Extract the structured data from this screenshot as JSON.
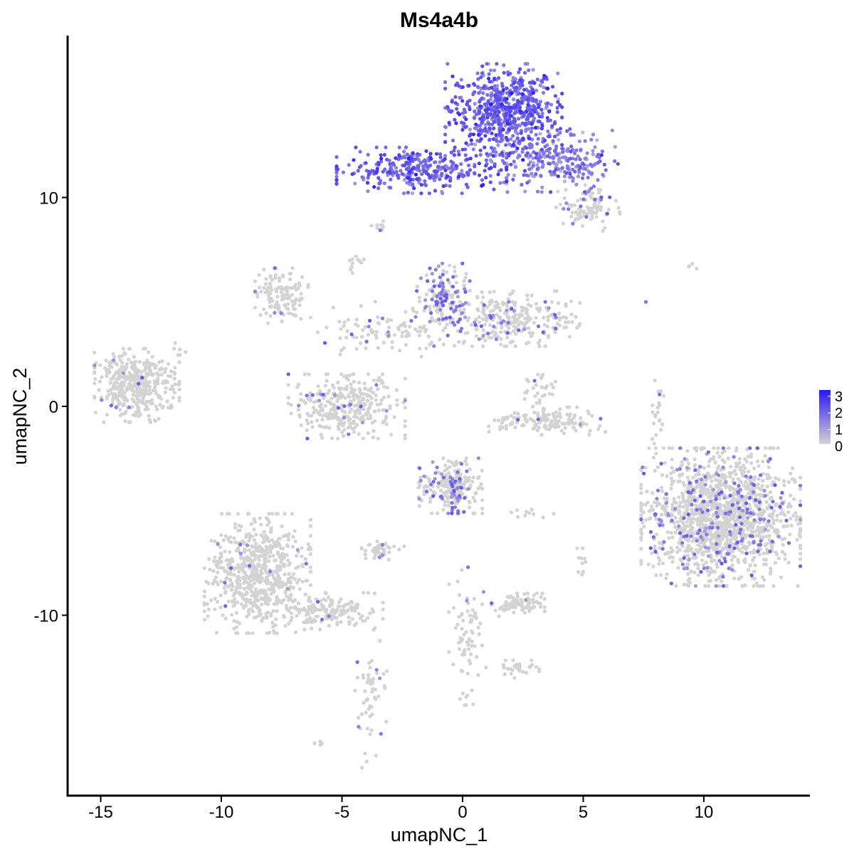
{
  "chart_data": {
    "type": "scatter",
    "title": "Ms4a4b",
    "xlabel": "umapNC_1",
    "ylabel": "umapNC_2",
    "xlim": [
      -16.4,
      14.4
    ],
    "ylim": [
      -18.2,
      17.8
    ],
    "x_ticks": [
      -15,
      -10,
      -5,
      0,
      5,
      10
    ],
    "x_tick_labels": [
      "-15",
      "-10",
      "-5",
      "0",
      "5",
      "10"
    ],
    "y_ticks": [
      -10,
      0,
      10
    ],
    "y_tick_labels": [
      "-10",
      "0",
      "10"
    ],
    "grid": false,
    "legend": {
      "placement": "right",
      "type": "colorbar",
      "ticks": [
        0,
        1,
        2,
        3
      ],
      "tick_labels": [
        "0",
        "1",
        "2",
        "3"
      ],
      "low_color": "#d3d3d3",
      "high_color": "#2a17f5"
    },
    "point_color_low": "#d3d3d3",
    "point_color_high": "#2a17f5",
    "clusters": [
      {
        "cx": 1.7,
        "cy": 14.2,
        "sx": 1.1,
        "sy": 1.0,
        "n": 650,
        "expr": 1.7
      },
      {
        "cx": -1.7,
        "cy": 11.3,
        "sx": 1.6,
        "sy": 0.5,
        "n": 330,
        "expr": 1.75
      },
      {
        "cx": 3.8,
        "cy": 11.8,
        "sx": 1.2,
        "sy": 0.7,
        "n": 260,
        "expr": 1.3
      },
      {
        "cx": 5.2,
        "cy": 9.5,
        "sx": 0.6,
        "sy": 0.5,
        "n": 110,
        "expr": 0.15
      },
      {
        "cx": -0.8,
        "cy": 5.3,
        "sx": 0.5,
        "sy": 0.7,
        "n": 130,
        "expr": 0.5
      },
      {
        "cx": 2.0,
        "cy": 4.2,
        "sx": 1.3,
        "sy": 0.6,
        "n": 290,
        "expr": 0.12
      },
      {
        "cx": -7.5,
        "cy": 5.3,
        "sx": 0.5,
        "sy": 0.6,
        "n": 130,
        "expr": 0.02
      },
      {
        "cx": -3.0,
        "cy": 3.7,
        "sx": 1.5,
        "sy": 0.6,
        "n": 120,
        "expr": 0.08
      },
      {
        "cx": -4.8,
        "cy": 0.0,
        "sx": 1.1,
        "sy": 0.7,
        "n": 330,
        "expr": 0.04
      },
      {
        "cx": -13.5,
        "cy": 1.0,
        "sx": 0.8,
        "sy": 0.8,
        "n": 400,
        "expr": 0.02
      },
      {
        "cx": 3.5,
        "cy": -0.7,
        "sx": 1.1,
        "sy": 0.3,
        "n": 150,
        "expr": 0.02
      },
      {
        "cx": 3.2,
        "cy": 0.8,
        "sx": 0.3,
        "sy": 0.4,
        "n": 30,
        "expr": 0.02
      },
      {
        "cx": 10.7,
        "cy": -5.3,
        "sx": 1.5,
        "sy": 1.5,
        "n": 1500,
        "expr": 0.12
      },
      {
        "cx": -0.5,
        "cy": -3.8,
        "sx": 0.6,
        "sy": 0.6,
        "n": 230,
        "expr": 0.22
      },
      {
        "cx": -8.5,
        "cy": -8.0,
        "sx": 1.0,
        "sy": 1.3,
        "n": 650,
        "expr": 0.02
      },
      {
        "cx": -5.5,
        "cy": -9.8,
        "sx": 1.0,
        "sy": 0.4,
        "n": 160,
        "expr": 0.03
      },
      {
        "cx": 2.3,
        "cy": -9.5,
        "sx": 0.5,
        "sy": 0.25,
        "n": 80,
        "expr": 0.03
      },
      {
        "cx": -3.3,
        "cy": -6.9,
        "sx": 0.4,
        "sy": 0.2,
        "n": 45,
        "expr": 0.1
      },
      {
        "cx": 0.2,
        "cy": -11.0,
        "sx": 0.35,
        "sy": 1.5,
        "n": 75,
        "expr": 0.02
      },
      {
        "cx": -3.8,
        "cy": -14.0,
        "sx": 0.3,
        "sy": 1.5,
        "n": 55,
        "expr": 0.05
      },
      {
        "cx": 2.3,
        "cy": -12.6,
        "sx": 0.4,
        "sy": 0.2,
        "n": 28,
        "expr": 0.02
      },
      {
        "cx": 8.0,
        "cy": -0.5,
        "sx": 0.15,
        "sy": 0.8,
        "n": 22,
        "expr": 0.02
      },
      {
        "cx": -3.4,
        "cy": 8.5,
        "sx": 0.2,
        "sy": 0.2,
        "n": 10,
        "expr": 0.1
      },
      {
        "cx": -4.5,
        "cy": 7.0,
        "sx": 0.2,
        "sy": 0.3,
        "n": 12,
        "expr": 0.02
      },
      {
        "cx": 2.9,
        "cy": -5.1,
        "sx": 0.4,
        "sy": 0.1,
        "n": 10,
        "expr": 0.02
      },
      {
        "cx": -11.7,
        "cy": 2.7,
        "sx": 0.2,
        "sy": 0.2,
        "n": 6,
        "expr": 0.0
      },
      {
        "cx": 9.6,
        "cy": 6.7,
        "sx": 0.3,
        "sy": 0.1,
        "n": 4,
        "expr": 0.0
      },
      {
        "cx": -6.1,
        "cy": -16.1,
        "sx": 0.15,
        "sy": 0.15,
        "n": 5,
        "expr": 0.0
      },
      {
        "cx": 5.0,
        "cy": -7.5,
        "sx": 0.15,
        "sy": 0.4,
        "n": 10,
        "expr": 0.02
      }
    ],
    "highlight_points": [
      {
        "x": 2.5,
        "y": 11.8,
        "value": 3.0
      },
      {
        "x": 7.6,
        "y": 5.0,
        "value": 1.5
      }
    ]
  }
}
